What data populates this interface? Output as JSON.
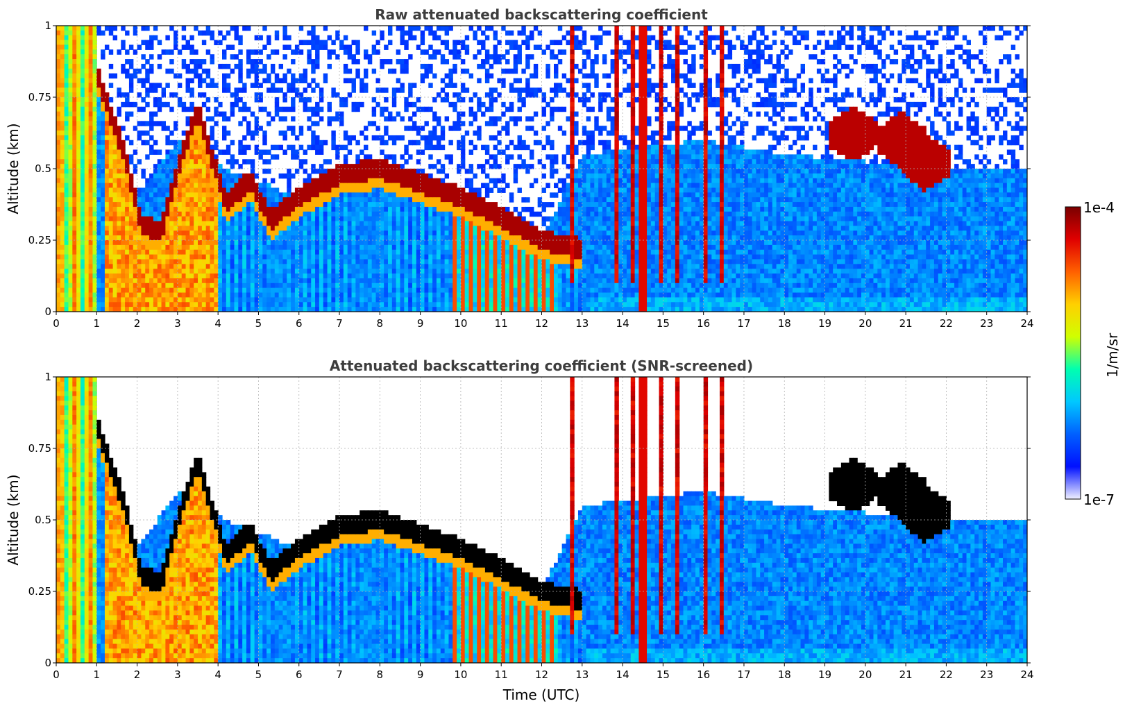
{
  "colors": {
    "colormap": [
      "#f0f0ff",
      "#0010ff",
      "#0060ff",
      "#00c8ff",
      "#00ffb0",
      "#d0ff00",
      "#ffd000",
      "#ff6000",
      "#e00000",
      "#7a0000"
    ],
    "screened_saturation": "#000000",
    "title_color": "#3d3d3d"
  },
  "chart_data": [
    {
      "type": "heatmap",
      "title": "Raw attenuated backscattering coefficient",
      "xlabel": "",
      "ylabel": "Altitude (km)",
      "xlim": [
        0,
        24
      ],
      "ylim": [
        0,
        1
      ],
      "x_ticks": [
        "0",
        "1",
        "2",
        "3",
        "4",
        "5",
        "6",
        "7",
        "8",
        "9",
        "10",
        "11",
        "12",
        "13",
        "14",
        "15",
        "16",
        "17",
        "18",
        "19",
        "20",
        "21",
        "22",
        "23",
        "24"
      ],
      "y_ticks": [
        "0",
        "0.25",
        "0.5",
        "0.75",
        "1"
      ],
      "grid": true,
      "features": {
        "boundary_layer_top": [
          [
            0,
            0.95
          ],
          [
            0.8,
            0.92
          ],
          [
            1.2,
            0.75
          ],
          [
            1.7,
            0.55
          ],
          [
            2.1,
            0.3
          ],
          [
            2.6,
            0.28
          ],
          [
            3.1,
            0.55
          ],
          [
            3.5,
            0.7
          ],
          [
            4.2,
            0.38
          ],
          [
            4.8,
            0.46
          ],
          [
            5.3,
            0.32
          ],
          [
            6.0,
            0.4
          ],
          [
            7.0,
            0.48
          ],
          [
            8.0,
            0.5
          ],
          [
            9.0,
            0.45
          ],
          [
            10.0,
            0.4
          ],
          [
            11.0,
            0.33
          ],
          [
            12.0,
            0.25
          ],
          [
            13.0,
            0.22
          ]
        ],
        "upper_clouds": [
          [
            19.7,
            0.62
          ],
          [
            20.9,
            0.6
          ],
          [
            21.5,
            0.52
          ]
        ],
        "noise_threshold_altitude": 0.5
      }
    },
    {
      "type": "heatmap",
      "title": "Attenuated backscattering coefficient (SNR-screened)",
      "xlabel": "Time (UTC)",
      "ylabel": "Altitude (km)",
      "xlim": [
        0,
        24
      ],
      "ylim": [
        0,
        1
      ],
      "x_ticks": [
        "0",
        "1",
        "2",
        "3",
        "4",
        "5",
        "6",
        "7",
        "8",
        "9",
        "10",
        "11",
        "12",
        "13",
        "14",
        "15",
        "16",
        "17",
        "18",
        "19",
        "20",
        "21",
        "22",
        "23",
        "24"
      ],
      "y_ticks": [
        "0",
        "0.25",
        "0.5",
        "0.75",
        "1"
      ],
      "grid": true
    }
  ],
  "colorbar": {
    "label": "1/m/sr",
    "max_label": "1e-4",
    "min_label": "1e-7",
    "range": [
      1e-07,
      0.0001
    ],
    "scale": "log"
  }
}
